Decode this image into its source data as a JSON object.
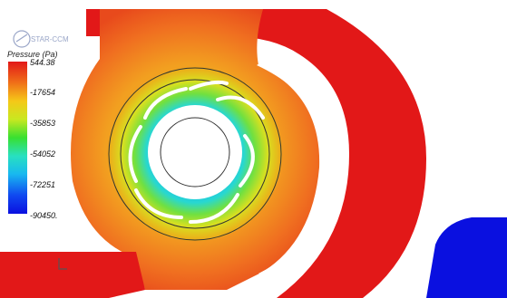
{
  "legend": {
    "title": "Pressure (Pa)",
    "ticks": [
      "544.38",
      "-17654",
      "-35853",
      "-54052",
      "-72251",
      "-90450."
    ]
  },
  "logo": {
    "text": "STAR-CCM"
  },
  "colors": {
    "high": "#e21818",
    "orange": "#f07018",
    "yellow": "#f5c818",
    "green": "#38e030",
    "cyan": "#18b8f0",
    "low": "#0a10e0"
  }
}
